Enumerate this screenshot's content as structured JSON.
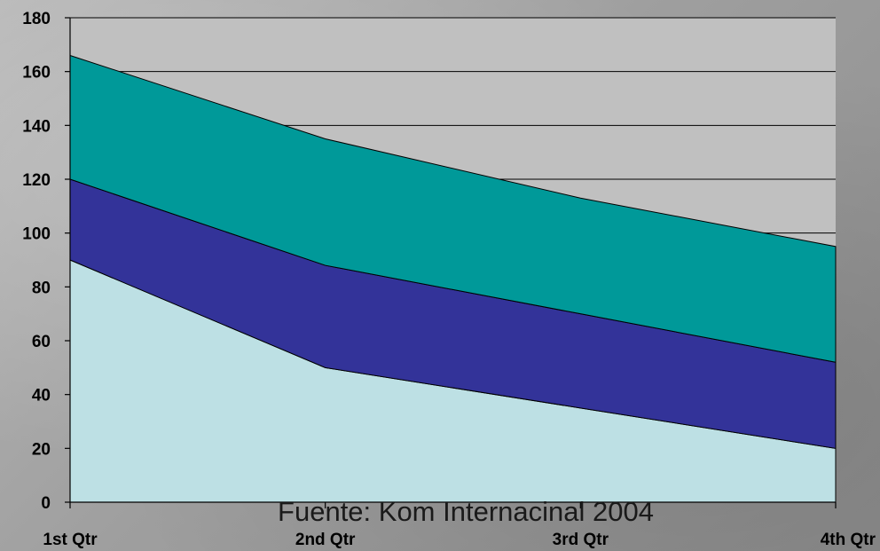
{
  "chart_data": {
    "type": "area",
    "stacked": true,
    "categories": [
      "1st Qtr",
      "2nd Qtr",
      "3rd Qtr",
      "4th Qtr"
    ],
    "series": [
      {
        "values": [
          90,
          50,
          35,
          20
        ],
        "color": "#bde0e4"
      },
      {
        "values": [
          30,
          38,
          35,
          32
        ],
        "color": "#333399"
      },
      {
        "values": [
          46,
          47,
          43,
          43
        ],
        "color": "#009999"
      }
    ],
    "ylim": [
      0,
      180
    ],
    "yticks": [
      "0",
      "20",
      "40",
      "60",
      "80",
      "100",
      "120",
      "140",
      "160",
      "180"
    ],
    "grid": true,
    "plot_background": "#c0c0c0",
    "gridline_color": "#000000",
    "annotation": "Fuente: Kom Internacinal 2004",
    "title": "",
    "xlabel": "",
    "ylabel": ""
  }
}
